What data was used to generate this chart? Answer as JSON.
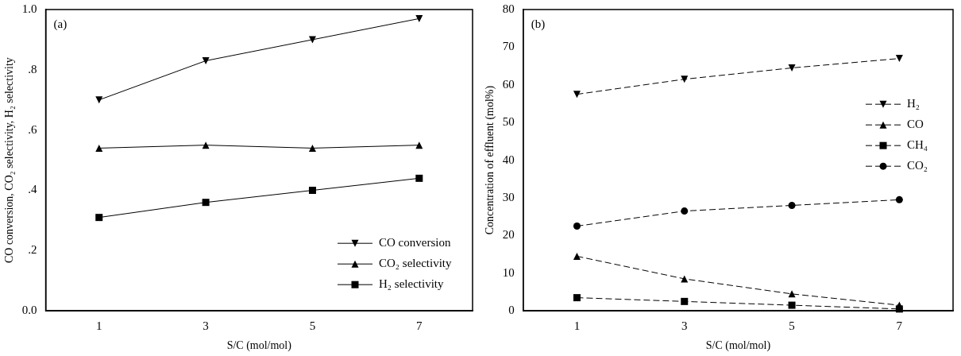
{
  "chart_data": [
    {
      "type": "line",
      "xlabel": "S/C (mol/mol)",
      "ylabel": "CO conversion, CO₂ selectivity, H₂ selectivity",
      "categories": [
        "1",
        "3",
        "5",
        "7"
      ],
      "ylim": [
        0,
        1
      ],
      "yticks": [
        {
          "value": 0,
          "label": "0.0"
        },
        {
          "value": 0.2,
          "label": ".2"
        },
        {
          "value": 0.4,
          "label": ".4"
        },
        {
          "value": 0.6,
          "label": ".6"
        },
        {
          "value": 0.8,
          "label": ".8"
        },
        {
          "value": 1,
          "label": "1.0"
        }
      ],
      "grid": false,
      "legend": "bottom right",
      "line_style": "solid",
      "annotations": [
        "(a)"
      ],
      "series": [
        {
          "name": "CO conversion",
          "color": "#000000",
          "marker": "triangle-down",
          "values": [
            0.7,
            0.83,
            0.9,
            0.97
          ]
        },
        {
          "name": "CO₂ selectivity",
          "color": "#000000",
          "marker": "triangle",
          "values": [
            0.54,
            0.55,
            0.54,
            0.55
          ]
        },
        {
          "name": "H₂ selectivity",
          "color": "#000000",
          "marker": "square",
          "values": [
            0.31,
            0.36,
            0.4,
            0.44
          ]
        }
      ]
    },
    {
      "type": "line",
      "xlabel": "S/C (mol/mol)",
      "ylabel": "Concentration of effluent (mol%)",
      "categories": [
        "1",
        "3",
        "5",
        "7"
      ],
      "ylim": [
        0,
        80
      ],
      "yticks": [
        0,
        10,
        20,
        30,
        40,
        50,
        60,
        70,
        80
      ],
      "grid": false,
      "legend": "right",
      "line_style": "dashed",
      "annotations": [
        "(b)"
      ],
      "series": [
        {
          "name": "H₂",
          "color": "#000000",
          "marker": "triangle-down",
          "values": [
            57.5,
            61.5,
            64.5,
            67
          ]
        },
        {
          "name": "CO",
          "color": "#000000",
          "marker": "triangle",
          "values": [
            14.5,
            8.5,
            4.5,
            1.5
          ]
        },
        {
          "name": "CH₄",
          "color": "#000000",
          "marker": "square",
          "values": [
            3.5,
            2.5,
            1.5,
            0.5
          ]
        },
        {
          "name": "CO₂",
          "color": "#000000",
          "marker": "circle",
          "values": [
            22.5,
            26.5,
            28,
            29.5
          ]
        }
      ]
    }
  ]
}
